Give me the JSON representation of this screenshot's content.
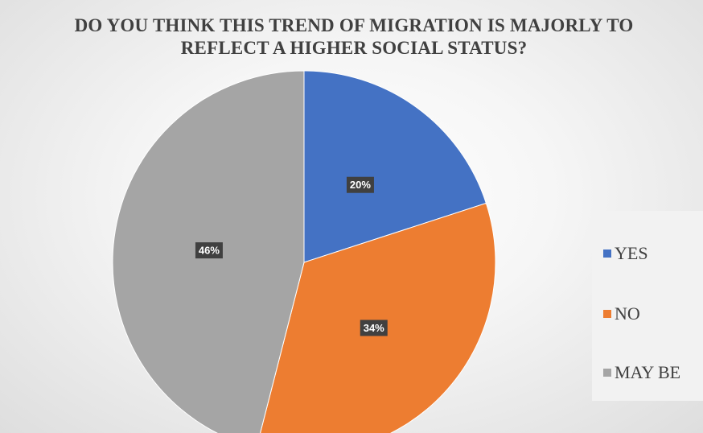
{
  "chart_data": {
    "type": "pie",
    "title": "DO YOU THINK THIS TREND OF MIGRATION IS MAJORLY TO REFLECT A HIGHER SOCIAL STATUS?",
    "categories": [
      "YES",
      "NO",
      "MAY BE"
    ],
    "values": [
      20,
      34,
      46
    ],
    "data_labels": [
      "20%",
      "34%",
      "46%"
    ],
    "colors": [
      "#4472C4",
      "#ED7D31",
      "#A5A5A5"
    ],
    "legend_position": "right",
    "start_angle_deg": 0,
    "direction": "clockwise"
  }
}
